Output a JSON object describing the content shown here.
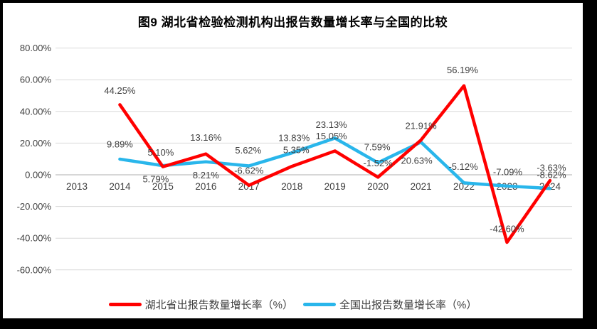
{
  "chart": {
    "title": "图9 湖北省检验检测机构出报告数量增长率与全国的比较",
    "chart_data": {
      "type": "line",
      "categories": [
        "2013",
        "2014",
        "2015",
        "2016",
        "2017",
        "2018",
        "2019",
        "2020",
        "2021",
        "2022",
        "2023",
        "2024"
      ],
      "series": [
        {
          "name": "湖北省出报告数量增长率（%）",
          "color": "#FF0000",
          "values": [
            null,
            44.25,
            5.1,
            13.16,
            -6.62,
            5.35,
            15.05,
            -1.52,
            21.91,
            56.19,
            -42.6,
            -3.63
          ]
        },
        {
          "name": "全国出报告数量增长率（%）",
          "color": "#29B6EB",
          "values": [
            null,
            9.89,
            5.79,
            8.21,
            5.62,
            13.83,
            23.13,
            7.59,
            20.63,
            -5.12,
            -7.09,
            -8.62
          ]
        }
      ],
      "y_ticks": [
        "80.00%",
        "60.00%",
        "40.00%",
        "20.00%",
        "0.00%",
        "-20.00%",
        "-40.00%",
        "-60.00%"
      ],
      "ylim": [
        -60,
        80
      ],
      "y_step": 20,
      "grid": true,
      "legend_position": "bottom",
      "data_label_format": "0.00%",
      "colors": {
        "grid": "#D9D9D9",
        "axis": "#BFBFBF",
        "tick_text": "#404040",
        "label_text": "#404040",
        "title_text": "#000000",
        "frame": "#000000",
        "background": "#FFFFFF"
      }
    }
  }
}
